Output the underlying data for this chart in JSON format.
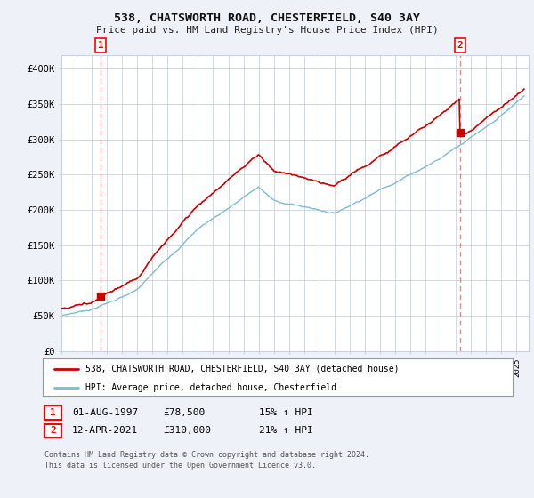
{
  "title": "538, CHATSWORTH ROAD, CHESTERFIELD, S40 3AY",
  "subtitle": "Price paid vs. HM Land Registry's House Price Index (HPI)",
  "sale1_date": "01-AUG-1997",
  "sale1_price": 78500,
  "sale1_label": "1",
  "sale1_year": 1997.58,
  "sale2_date": "12-APR-2021",
  "sale2_price": 310000,
  "sale2_label": "2",
  "sale2_year": 2021.28,
  "legend_line1": "538, CHATSWORTH ROAD, CHESTERFIELD, S40 3AY (detached house)",
  "legend_line2": "HPI: Average price, detached house, Chesterfield",
  "table_row1": [
    "1",
    "01-AUG-1997",
    "£78,500",
    "15% ↑ HPI"
  ],
  "table_row2": [
    "2",
    "12-APR-2021",
    "£310,000",
    "21% ↑ HPI"
  ],
  "footer1": "Contains HM Land Registry data © Crown copyright and database right 2024.",
  "footer2": "This data is licensed under the Open Government Licence v3.0.",
  "ylim": [
    0,
    420000
  ],
  "xlim_start": 1995.0,
  "xlim_end": 2025.8,
  "hpi_color": "#7abcd6",
  "sale_color": "#cc0000",
  "dashed_color": "#e87878",
  "background_color": "#eef2f8",
  "plot_bg": "#ffffff",
  "grid_color": "#c8d4e0"
}
